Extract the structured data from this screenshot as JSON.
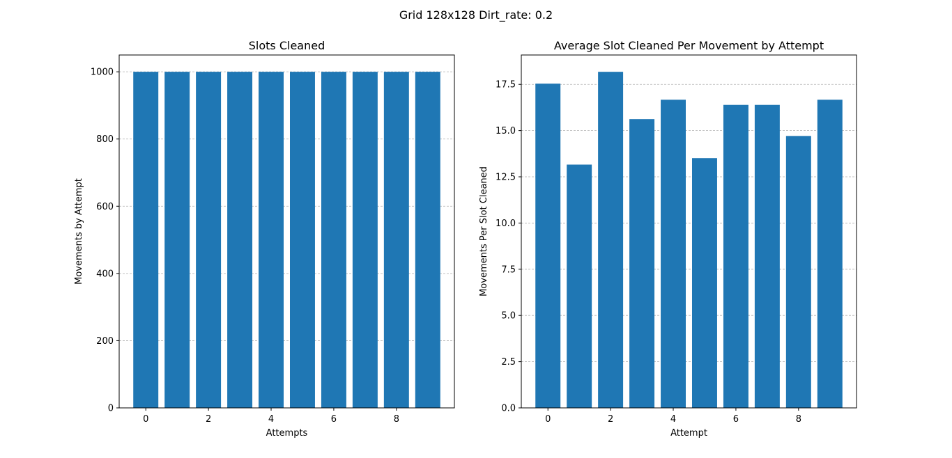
{
  "figure": {
    "suptitle": "Grid 128x128 Dirt_rate: 0.2"
  },
  "colors": {
    "bar": "#1f77b4",
    "grid": "#b0b0b0",
    "axis": "#000000"
  },
  "chart_data": [
    {
      "type": "bar",
      "title": "Slots Cleaned",
      "xlabel": "Attempts",
      "ylabel": "Movements by Attempt",
      "x": [
        0,
        1,
        2,
        3,
        4,
        5,
        6,
        7,
        8,
        9
      ],
      "values": [
        1000,
        1000,
        1000,
        1000,
        1000,
        1000,
        1000,
        1000,
        1000,
        1000
      ],
      "xlim": [
        -0.85,
        9.85
      ],
      "ylim": [
        0,
        1050
      ],
      "xticks": [
        0,
        2,
        4,
        6,
        8
      ],
      "yticks": [
        0,
        200,
        400,
        600,
        800,
        1000
      ],
      "ytick_labels": [
        "0",
        "200",
        "400",
        "600",
        "800",
        "1000"
      ],
      "grid": "y-dashed"
    },
    {
      "type": "bar",
      "title": "Average Slot Cleaned Per Movement by Attempt",
      "xlabel": "Attempt",
      "ylabel": "Movements Per Slot Cleaned",
      "x": [
        0,
        1,
        2,
        3,
        4,
        5,
        6,
        7,
        8,
        9
      ],
      "values": [
        17.54,
        13.16,
        18.18,
        15.62,
        16.67,
        13.51,
        16.39,
        16.39,
        14.71,
        16.67
      ],
      "xlim": [
        -0.85,
        9.85
      ],
      "ylim": [
        0,
        19.09
      ],
      "xticks": [
        0,
        2,
        4,
        6,
        8
      ],
      "yticks": [
        0,
        2.5,
        5.0,
        7.5,
        10.0,
        12.5,
        15.0,
        17.5
      ],
      "ytick_labels": [
        "0.0",
        "2.5",
        "5.0",
        "7.5",
        "10.0",
        "12.5",
        "15.0",
        "17.5"
      ],
      "grid": "y-dashed"
    }
  ]
}
